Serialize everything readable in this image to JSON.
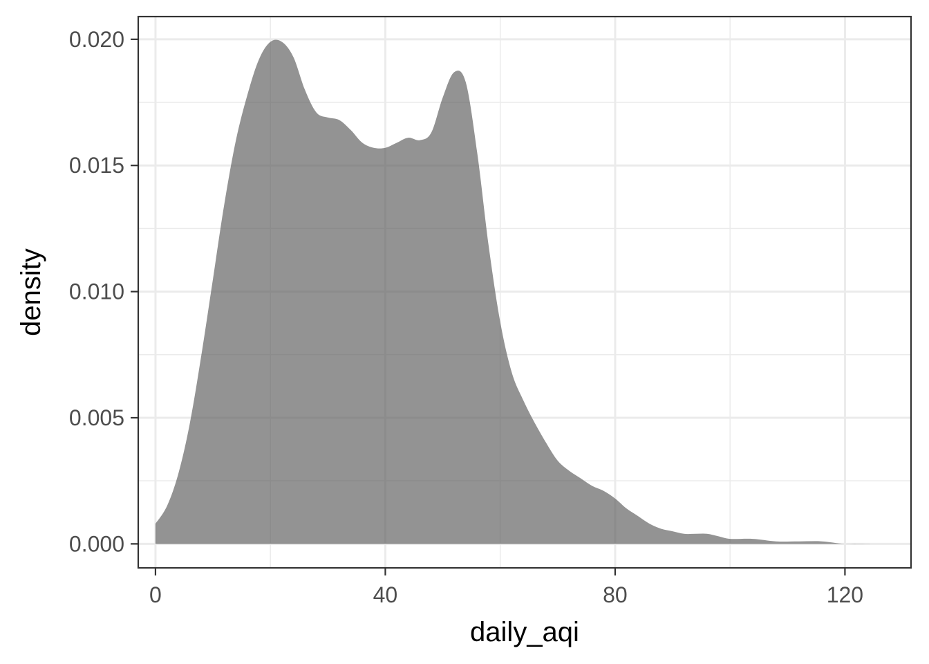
{
  "chart_data": {
    "type": "area",
    "geom": "density",
    "xlabel": "daily_aqi",
    "ylabel": "density",
    "xlim": [
      -3,
      131.5
    ],
    "ylim": [
      -0.00095,
      0.0209
    ],
    "x_ticks": [
      0,
      40,
      80,
      120
    ],
    "x_tick_labels": [
      "0",
      "40",
      "80",
      "120"
    ],
    "x_minor_ticks": [
      20,
      60,
      100
    ],
    "y_ticks": [
      0,
      0.005,
      0.01,
      0.015,
      0.02
    ],
    "y_tick_labels": [
      "0.000",
      "0.005",
      "0.010",
      "0.015",
      "0.020"
    ],
    "y_minor_ticks": [
      0.0025,
      0.0075,
      0.0125,
      0.0175
    ],
    "grid": true,
    "theme": "bw",
    "fill_color": "#595959",
    "fill_opacity": 0.65,
    "series": [
      {
        "x": [
          0,
          2,
          4,
          6,
          8,
          10,
          12,
          14,
          16,
          18,
          20,
          22,
          24,
          26,
          28,
          30,
          32,
          34,
          36,
          38,
          40,
          42,
          44,
          46,
          48,
          50,
          52,
          54,
          56,
          58,
          60,
          62,
          64,
          66,
          68,
          70,
          72,
          74,
          76,
          78,
          80,
          82,
          84,
          86,
          88,
          90,
          92,
          94,
          96,
          98,
          100,
          104,
          108,
          112,
          116,
          120,
          125
        ],
        "y": [
          0.0008,
          0.0015,
          0.0028,
          0.0048,
          0.0075,
          0.0105,
          0.0135,
          0.016,
          0.0178,
          0.0192,
          0.0199,
          0.0199,
          0.0193,
          0.018,
          0.0171,
          0.0169,
          0.0168,
          0.0164,
          0.0159,
          0.0157,
          0.0157,
          0.0159,
          0.0161,
          0.016,
          0.0163,
          0.0177,
          0.0187,
          0.0183,
          0.0155,
          0.0118,
          0.0088,
          0.0068,
          0.0057,
          0.0048,
          0.004,
          0.0033,
          0.0029,
          0.0026,
          0.0023,
          0.0021,
          0.0018,
          0.0014,
          0.0011,
          0.0008,
          0.0006,
          0.0005,
          0.0004,
          0.0004,
          0.0004,
          0.0003,
          0.0002,
          0.0002,
          0.0001,
          0.0001,
          0.0001,
          0.0,
          0.0
        ]
      }
    ]
  }
}
